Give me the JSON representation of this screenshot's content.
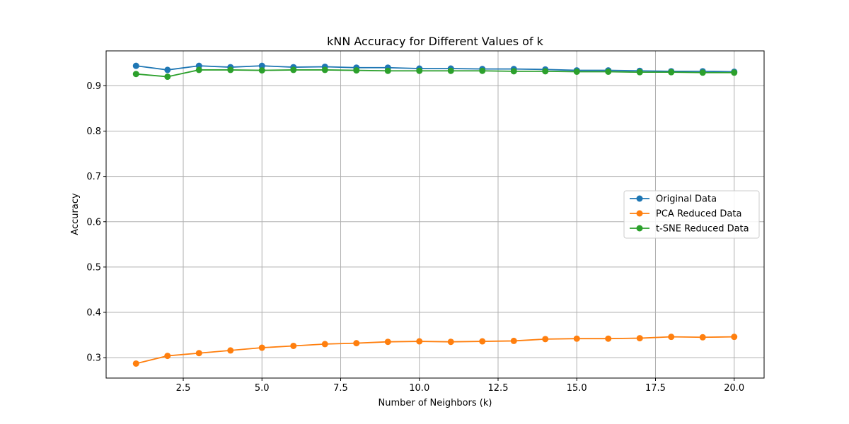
{
  "chart_data": {
    "type": "line",
    "title": "kNN Accuracy for Different Values of k",
    "xlabel": "Number of Neighbors (k)",
    "ylabel": "Accuracy",
    "xlim": [
      0.05,
      20.95
    ],
    "ylim": [
      0.255,
      0.977
    ],
    "xticks": [
      2.5,
      5.0,
      7.5,
      10.0,
      12.5,
      15.0,
      17.5,
      20.0
    ],
    "xtick_labels": [
      "2.5",
      "5.0",
      "7.5",
      "10.0",
      "12.5",
      "15.0",
      "17.5",
      "20.0"
    ],
    "yticks": [
      0.3,
      0.4,
      0.5,
      0.6,
      0.7,
      0.8,
      0.9
    ],
    "ytick_labels": [
      "0.3",
      "0.4",
      "0.5",
      "0.6",
      "0.7",
      "0.8",
      "0.9"
    ],
    "grid": true,
    "legend_position": "center-right",
    "x": [
      1,
      2,
      3,
      4,
      5,
      6,
      7,
      8,
      9,
      10,
      11,
      12,
      13,
      14,
      15,
      16,
      17,
      18,
      19,
      20
    ],
    "series": [
      {
        "name": "Original Data",
        "color": "#1f77b4",
        "values": [
          0.944,
          0.935,
          0.944,
          0.941,
          0.944,
          0.941,
          0.942,
          0.94,
          0.94,
          0.938,
          0.938,
          0.937,
          0.937,
          0.936,
          0.934,
          0.934,
          0.933,
          0.932,
          0.932,
          0.931
        ]
      },
      {
        "name": "PCA Reduced Data",
        "color": "#ff7f0e",
        "values": [
          0.287,
          0.304,
          0.31,
          0.316,
          0.322,
          0.326,
          0.33,
          0.332,
          0.335,
          0.336,
          0.335,
          0.336,
          0.337,
          0.341,
          0.342,
          0.342,
          0.343,
          0.346,
          0.345,
          0.346
        ]
      },
      {
        "name": "t-SNE Reduced Data",
        "color": "#2ca02c",
        "values": [
          0.926,
          0.92,
          0.935,
          0.935,
          0.934,
          0.935,
          0.935,
          0.934,
          0.933,
          0.933,
          0.933,
          0.933,
          0.932,
          0.932,
          0.931,
          0.931,
          0.93,
          0.93,
          0.929,
          0.929
        ]
      }
    ]
  }
}
